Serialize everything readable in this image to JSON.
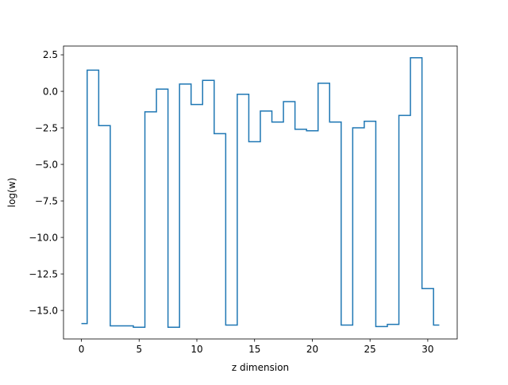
{
  "chart_data": {
    "type": "line",
    "drawstyle": "steps-mid",
    "title": "",
    "xlabel": "z dimension",
    "ylabel": "log(w)",
    "xlim": [
      -1.55,
      32.55
    ],
    "ylim": [
      -16.95,
      3.1
    ],
    "xticks": [
      0,
      5,
      10,
      15,
      20,
      25,
      30
    ],
    "xtick_labels": [
      "0",
      "5",
      "10",
      "15",
      "20",
      "25",
      "30"
    ],
    "yticks": [
      2.5,
      0.0,
      -2.5,
      -5.0,
      -7.5,
      -10.0,
      -12.5,
      -15.0
    ],
    "ytick_labels": [
      "2.5",
      "0.0",
      "−2.5",
      "−5.0",
      "−7.5",
      "−10.0",
      "−12.5",
      "−15.0"
    ],
    "grid": false,
    "colors": {
      "series": "#1f77b4",
      "axes": "#000000",
      "background": "#ffffff"
    },
    "series": [
      {
        "x": [
          0,
          1,
          2,
          3,
          4,
          5,
          6,
          7,
          8,
          9,
          10,
          11,
          12,
          13,
          14,
          15,
          16,
          17,
          18,
          19,
          20,
          21,
          22,
          23,
          24,
          25,
          26,
          27,
          28,
          29,
          30,
          31
        ],
        "values": [
          -15.9,
          1.45,
          -2.35,
          -16.05,
          -16.05,
          -16.15,
          -1.4,
          0.15,
          -16.15,
          0.5,
          -0.9,
          0.75,
          -2.9,
          -16.0,
          -0.2,
          -3.45,
          -1.35,
          -2.1,
          -0.7,
          -2.6,
          -2.7,
          0.55,
          -2.1,
          -16.0,
          -2.5,
          -2.05,
          -16.1,
          -15.95,
          -1.65,
          2.3,
          -13.5,
          -16.0
        ]
      }
    ]
  }
}
